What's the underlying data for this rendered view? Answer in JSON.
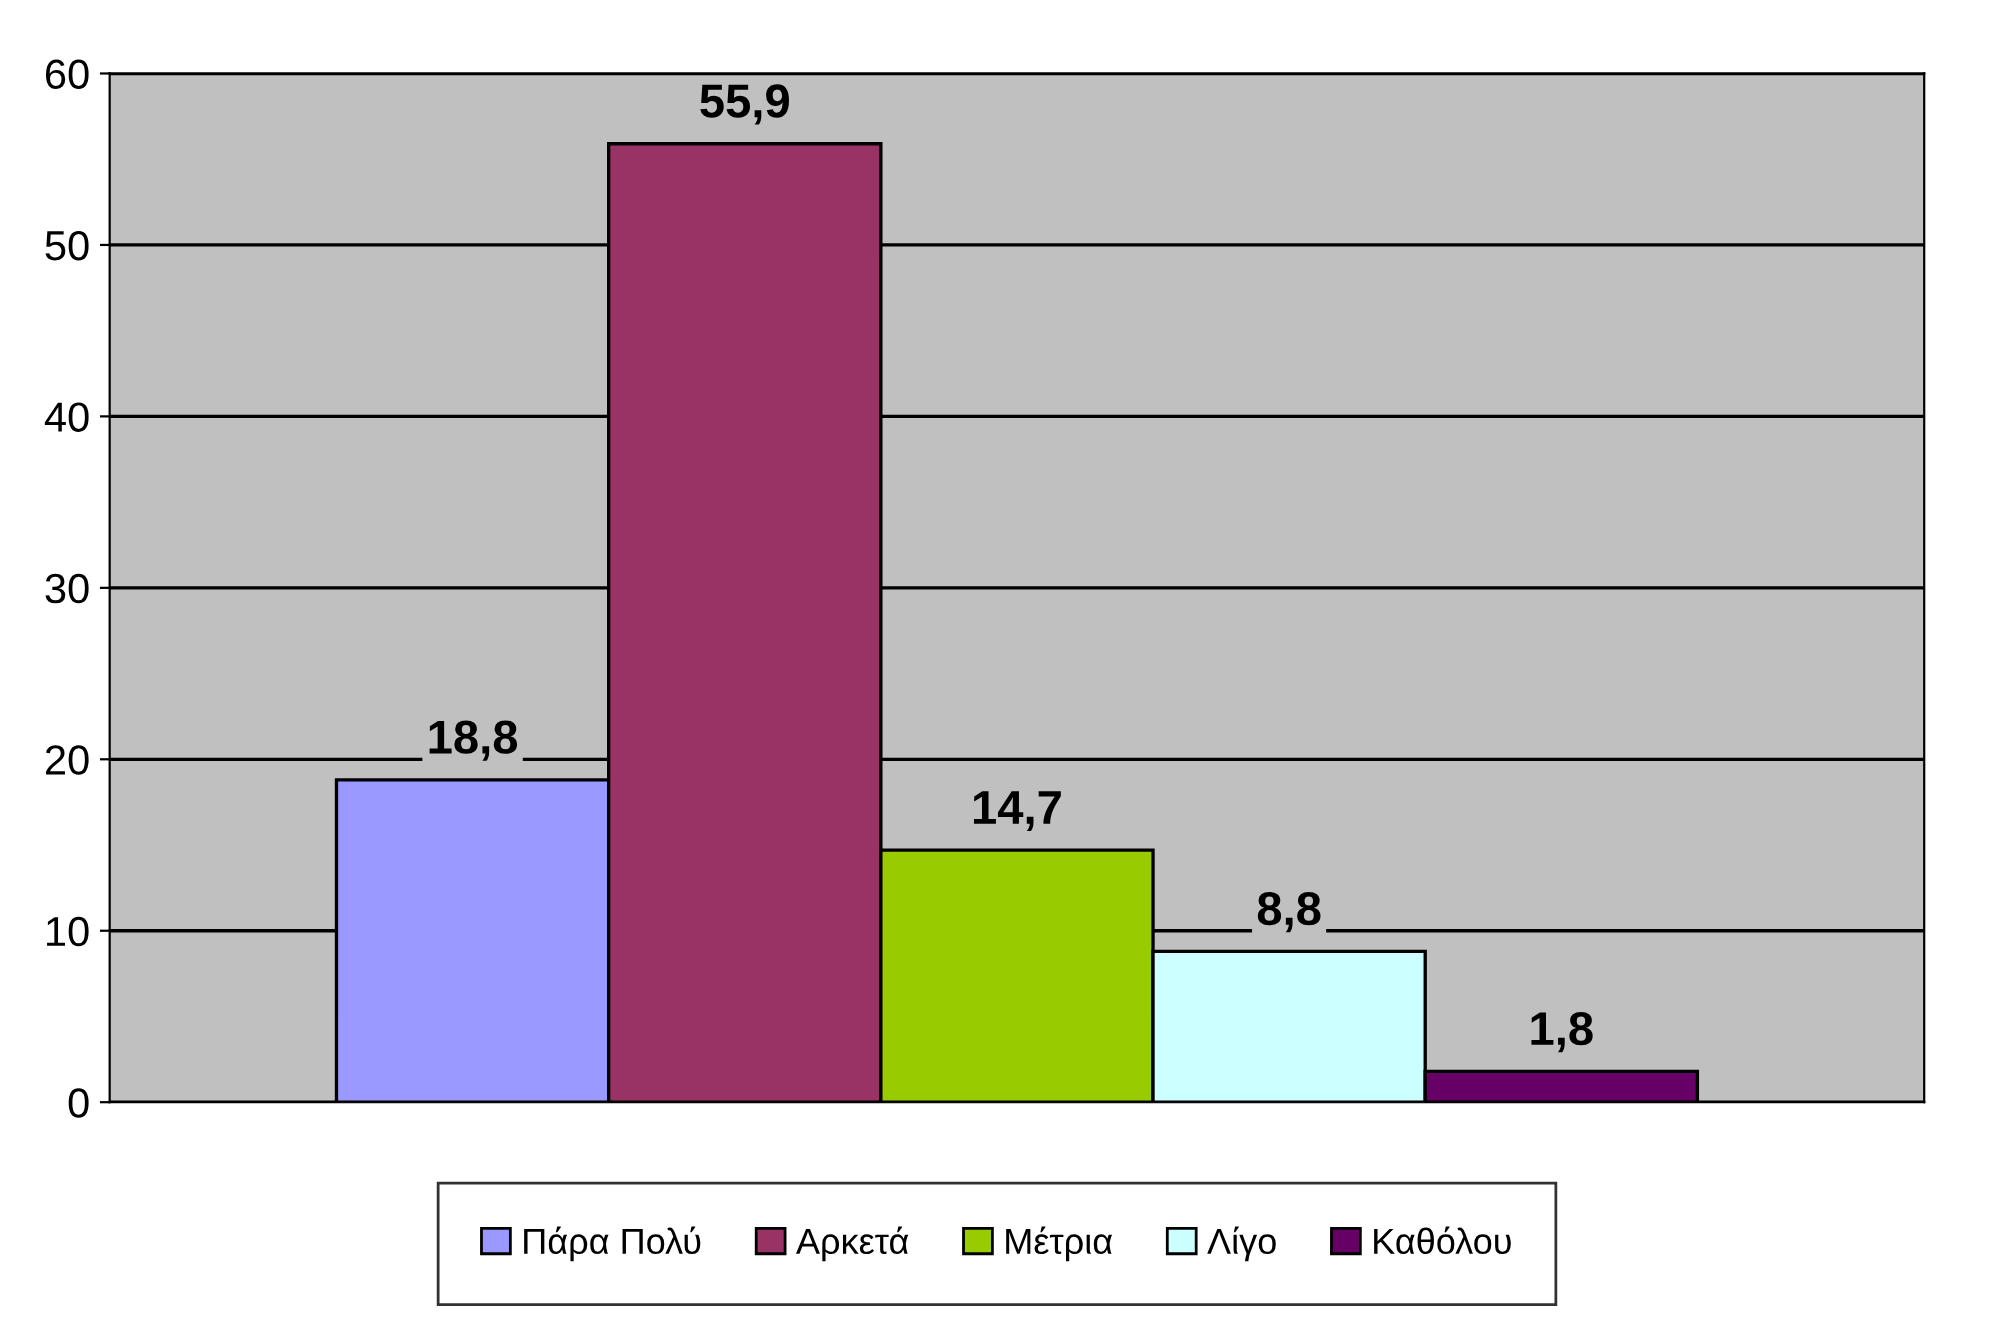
{
  "chart_data": {
    "type": "bar",
    "categories": [
      null
    ],
    "series": [
      {
        "name": "Πάρα Πολύ",
        "color": "#9999ff",
        "values": [
          18.8
        ],
        "value_labels": [
          "18,8"
        ]
      },
      {
        "name": "Αρκετά",
        "color": "#993366",
        "values": [
          55.9
        ],
        "value_labels": [
          "55,9"
        ]
      },
      {
        "name": "Μέτρια",
        "color": "#99cc00",
        "values": [
          14.7
        ],
        "value_labels": [
          "14,7"
        ]
      },
      {
        "name": "Λίγο",
        "color": "#ccffff",
        "values": [
          8.8
        ],
        "value_labels": [
          "8,8"
        ]
      },
      {
        "name": "Καθόλου",
        "color": "#660066",
        "values": [
          1.8
        ],
        "value_labels": [
          "1,8"
        ]
      }
    ],
    "ylim": [
      0,
      60
    ],
    "yticks": [
      0,
      10,
      20,
      30,
      40,
      50,
      60
    ],
    "grid": "y",
    "legend": "bottom"
  }
}
